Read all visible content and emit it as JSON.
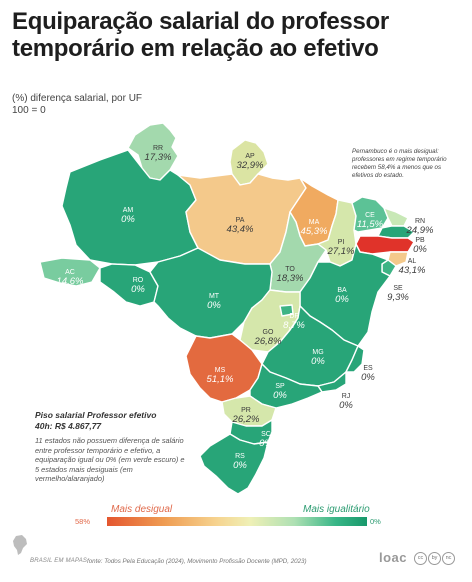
{
  "title": "Equiparação salarial do professor temporário em relação ao efetivo",
  "subtitle": "(%) diferença salarial, por UF",
  "base_note": "100 = 0",
  "annotation": "Pernambuco é o mais desigual: professores em regime temporário recebem 58,4% a menos que os efetivos do estado.",
  "states": [
    {
      "uf": "RR",
      "value": "17,3%",
      "color": "#a3d9ad",
      "num": 17.3
    },
    {
      "uf": "AP",
      "value": "32,9%",
      "color": "#dbe4a3",
      "num": 32.9
    },
    {
      "uf": "AM",
      "value": "0%",
      "color": "#28a578",
      "num": 0
    },
    {
      "uf": "PA",
      "value": "43,4%",
      "color": "#f4c98b",
      "num": 43.4
    },
    {
      "uf": "MA",
      "value": "45,3%",
      "color": "#f0aa60",
      "num": 45.3
    },
    {
      "uf": "CE",
      "value": "11,5%",
      "color": "#5cc296",
      "num": 11.5
    },
    {
      "uf": "RN",
      "value": "24,9%",
      "color": "#c8e8b6",
      "num": 24.9
    },
    {
      "uf": "PB",
      "value": "0%",
      "color": "#28a578",
      "num": 0
    },
    {
      "uf": "PE",
      "value": "",
      "color": "#e0332a",
      "num": 58.4
    },
    {
      "uf": "AL",
      "value": "43,1%",
      "color": "#f4c98b",
      "num": 43.1
    },
    {
      "uf": "SE",
      "value": "9,3%",
      "color": "#3db485",
      "num": 9.3
    },
    {
      "uf": "PI",
      "value": "27,1%",
      "color": "#d5e7ab",
      "num": 27.1
    },
    {
      "uf": "AC",
      "value": "14,6%",
      "color": "#79cc9f",
      "num": 14.6
    },
    {
      "uf": "RO",
      "value": "0%",
      "color": "#28a578",
      "num": 0
    },
    {
      "uf": "TO",
      "value": "18,3%",
      "color": "#a3d9ad",
      "num": 18.3
    },
    {
      "uf": "BA",
      "value": "0%",
      "color": "#28a578",
      "num": 0
    },
    {
      "uf": "MT",
      "value": "0%",
      "color": "#28a578",
      "num": 0
    },
    {
      "uf": "DF",
      "value": "8,7%",
      "color": "#3db485",
      "num": 8.7
    },
    {
      "uf": "GO",
      "value": "26,8%",
      "color": "#d5e7ab",
      "num": 26.8
    },
    {
      "uf": "MG",
      "value": "0%",
      "color": "#28a578",
      "num": 0
    },
    {
      "uf": "ES",
      "value": "0%",
      "color": "#28a578",
      "num": 0
    },
    {
      "uf": "MS",
      "value": "51,1%",
      "color": "#e36a3f",
      "num": 51.1
    },
    {
      "uf": "RJ",
      "value": "0%",
      "color": "#28a578",
      "num": 0
    },
    {
      "uf": "SP",
      "value": "0%",
      "color": "#28a578",
      "num": 0
    },
    {
      "uf": "PR",
      "value": "26,2%",
      "color": "#d5e7ab",
      "num": 26.2
    },
    {
      "uf": "SC",
      "value": "0%",
      "color": "#28a578",
      "num": 0
    },
    {
      "uf": "RS",
      "value": "0%",
      "color": "#28a578",
      "num": 0
    }
  ],
  "piso": {
    "title": "Piso salarial Professor efetivo",
    "value": "40h: R$ 4.867,77",
    "description": "11 estados não possuem diferença de salário entre professor temporário e efetivo, a equiparação igual ou 0% (em verde escuro) e 5 estados mais desiguais (em vermelho/alaranjado)"
  },
  "legend": {
    "left_label": "Mais desigual",
    "right_label": "Mais igualitário",
    "min_label": "58%",
    "max_label": "0%",
    "colors": [
      "#e4562f",
      "#f6d38f",
      "#18986b"
    ]
  },
  "footer": {
    "brand": "BRASIL EM MAPAS",
    "source": "fonte: Todos Pela Educação (2024), Movimento Profissão Docente (MPD, 2023)",
    "logo": "loac",
    "license_icons": [
      "cc",
      "by",
      "nc"
    ]
  }
}
